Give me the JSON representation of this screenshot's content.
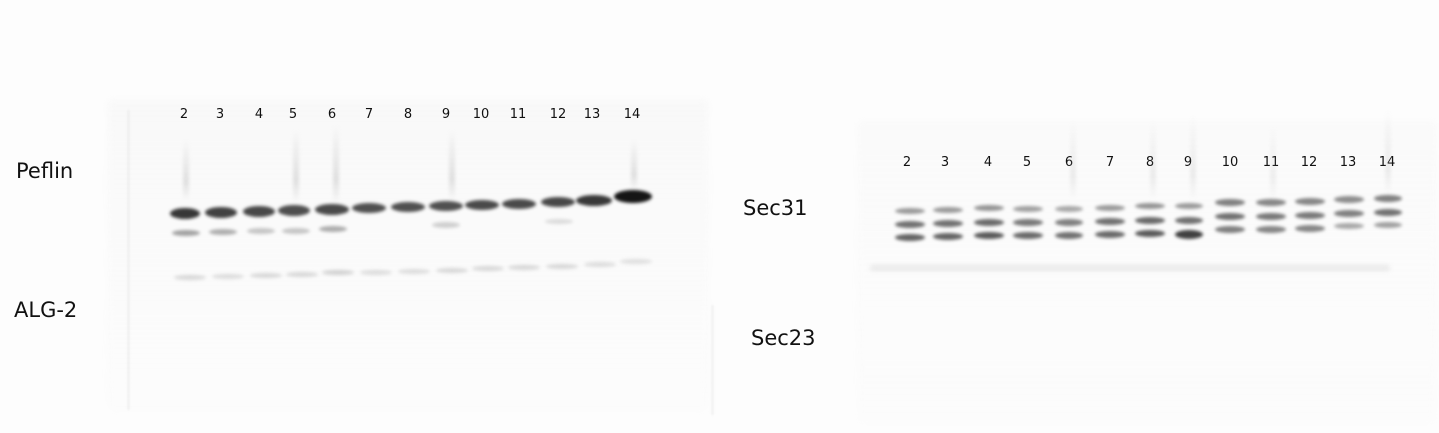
{
  "left_blot": {
    "lanes": [
      "2",
      "3",
      "4",
      "5",
      "6",
      "7",
      "8",
      "9",
      "10",
      "11",
      "12",
      "13",
      "14"
    ],
    "labels": {
      "primary": "Peflin",
      "secondary": "ALG-2"
    }
  },
  "right_blot": {
    "lanes": [
      "2",
      "3",
      "4",
      "5",
      "6",
      "7",
      "8",
      "9",
      "10",
      "11",
      "12",
      "13",
      "14"
    ],
    "labels": {
      "primary": "Sec31",
      "secondary": "Sec23"
    }
  }
}
